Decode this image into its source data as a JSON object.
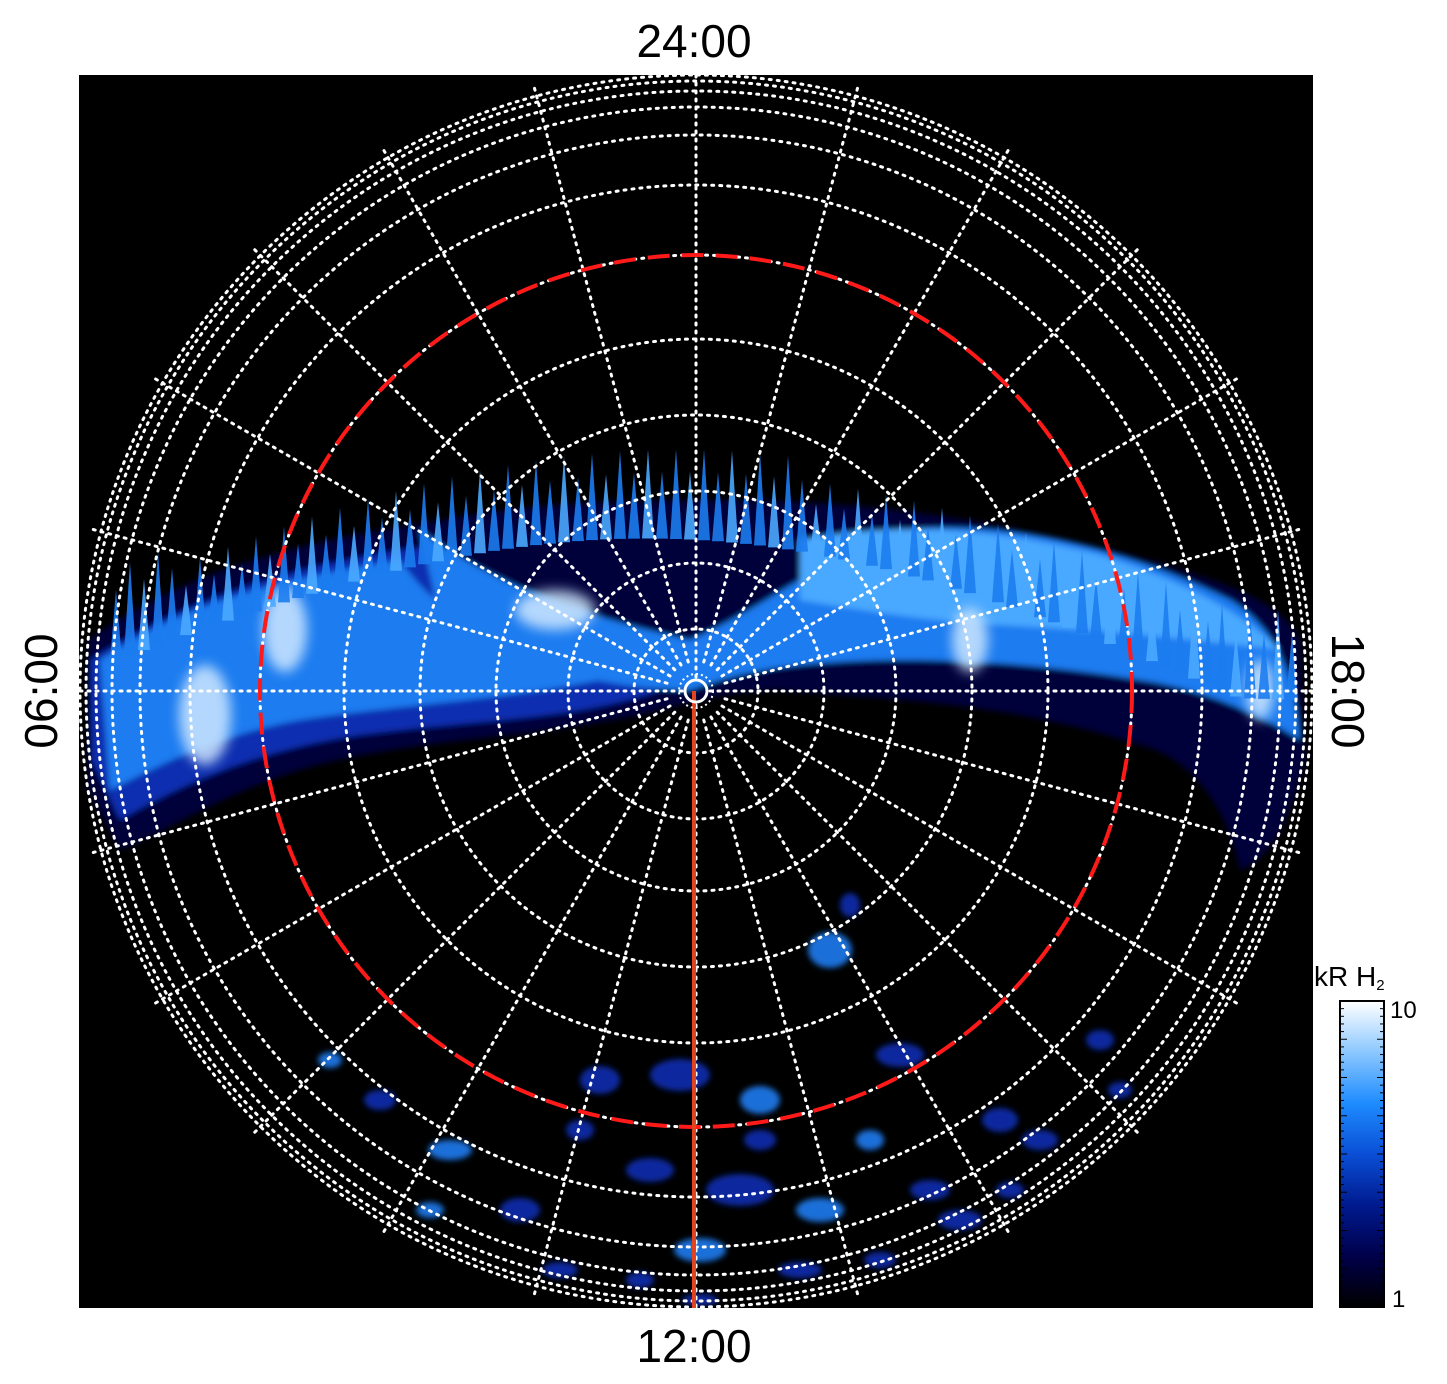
{
  "labels": {
    "top": "24:00",
    "bottom": "12:00",
    "left": "06:00",
    "right": "18:00"
  },
  "colorbar": {
    "title_main": "kR H",
    "title_sub": "2",
    "max_label": "10",
    "min_label": "1",
    "scale": "log",
    "range": [
      1,
      10
    ],
    "colors": [
      "#000000",
      "#00004a",
      "#001a8f",
      "#0a4fd6",
      "#1e8cff",
      "#8cc8ff",
      "#ffffff"
    ]
  },
  "map": {
    "background": "#000000",
    "grid_color": "#ffffff",
    "grid_style": "dotted",
    "reference_circle_color": "#ff1a1a",
    "reference_circle_style": "dashed",
    "meridian_line_color": "#e0451f",
    "meridian_line_direction": "12:00",
    "emission_colors": [
      "#00023a",
      "#0a2fb0",
      "#1c7cf0",
      "#4aa8ff",
      "#cfe8ff"
    ]
  }
}
